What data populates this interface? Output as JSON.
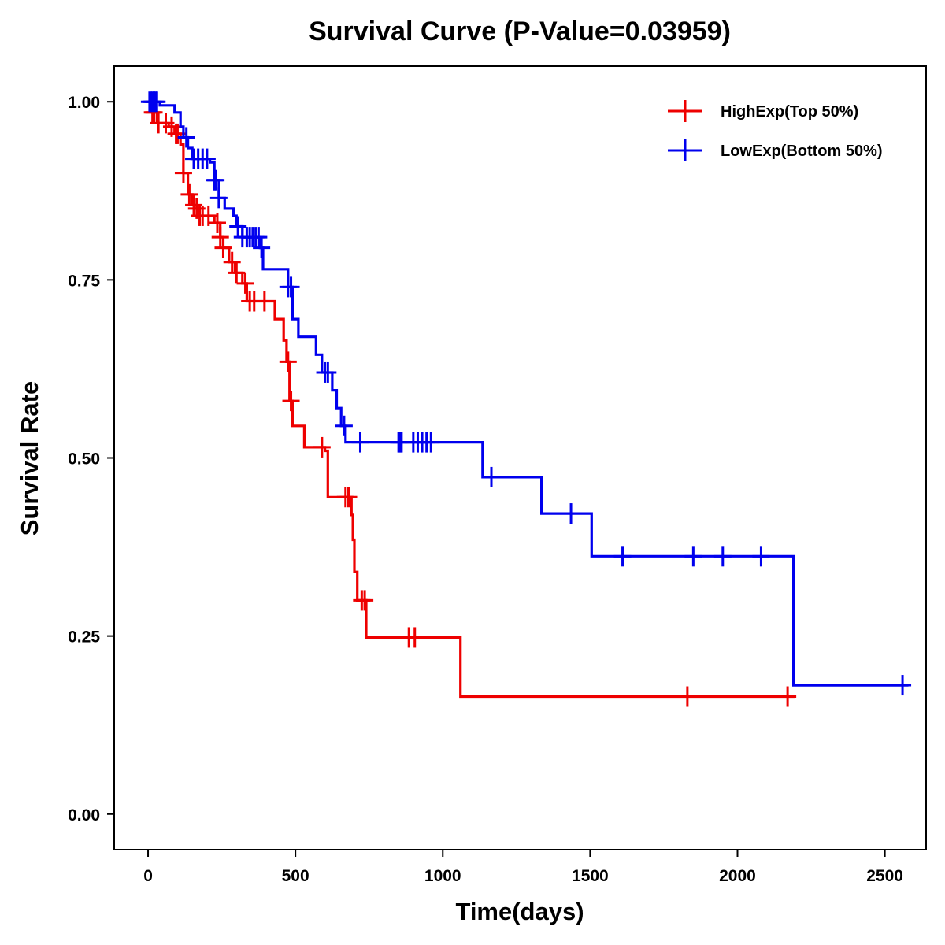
{
  "chart_data": {
    "type": "line",
    "subtype": "kaplan-meier",
    "title": "Survival Curve (P-Value=0.03959)",
    "xlabel": "Time(days)",
    "ylabel": "Survival Rate",
    "xlim": [
      -115,
      2640
    ],
    "ylim": [
      -0.05,
      1.05
    ],
    "xticks": [
      0,
      500,
      1000,
      1500,
      2000,
      2500
    ],
    "xtick_labels": [
      "0",
      "500",
      "1000",
      "1500",
      "2000",
      "2500"
    ],
    "yticks": [
      0,
      0.25,
      0.5,
      0.75,
      1
    ],
    "ytick_labels": [
      "0.00",
      "0.25",
      "0.50",
      "0.75",
      "1.00"
    ],
    "legend_position": "top-right",
    "series": [
      {
        "name": "HighExp(Top 50%)",
        "color": "#ee0000",
        "steps": [
          [
            0,
            1.0
          ],
          [
            15,
            0.985
          ],
          [
            30,
            0.97
          ],
          [
            50,
            0.97
          ],
          [
            70,
            0.965
          ],
          [
            90,
            0.955
          ],
          [
            110,
            0.94
          ],
          [
            120,
            0.9
          ],
          [
            135,
            0.87
          ],
          [
            150,
            0.855
          ],
          [
            165,
            0.85
          ],
          [
            175,
            0.84
          ],
          [
            195,
            0.84
          ],
          [
            225,
            0.83
          ],
          [
            245,
            0.81
          ],
          [
            255,
            0.795
          ],
          [
            275,
            0.775
          ],
          [
            295,
            0.76
          ],
          [
            320,
            0.745
          ],
          [
            335,
            0.72
          ],
          [
            380,
            0.72
          ],
          [
            405,
            0.72
          ],
          [
            430,
            0.695
          ],
          [
            460,
            0.665
          ],
          [
            470,
            0.635
          ],
          [
            480,
            0.58
          ],
          [
            490,
            0.545
          ],
          [
            530,
            0.515
          ],
          [
            600,
            0.51
          ],
          [
            610,
            0.445
          ],
          [
            670,
            0.445
          ],
          [
            690,
            0.42
          ],
          [
            695,
            0.385
          ],
          [
            700,
            0.34
          ],
          [
            710,
            0.3
          ],
          [
            740,
            0.248
          ],
          [
            1060,
            0.165
          ],
          [
            2195,
            0.165
          ]
        ],
        "censor_times": [
          15,
          20,
          35,
          60,
          80,
          95,
          100,
          120,
          140,
          155,
          165,
          175,
          185,
          205,
          235,
          245,
          255,
          285,
          300,
          330,
          345,
          360,
          395,
          475,
          485,
          590,
          670,
          680,
          725,
          735,
          885,
          905,
          1830,
          2170
        ]
      },
      {
        "name": "LowExp(Bottom 50%)",
        "color": "#0000ee",
        "steps": [
          [
            0,
            1.0
          ],
          [
            40,
            0.995
          ],
          [
            90,
            0.985
          ],
          [
            110,
            0.965
          ],
          [
            120,
            0.95
          ],
          [
            135,
            0.935
          ],
          [
            150,
            0.92
          ],
          [
            210,
            0.915
          ],
          [
            225,
            0.89
          ],
          [
            240,
            0.865
          ],
          [
            260,
            0.85
          ],
          [
            290,
            0.84
          ],
          [
            300,
            0.825
          ],
          [
            320,
            0.81
          ],
          [
            380,
            0.795
          ],
          [
            390,
            0.765
          ],
          [
            445,
            0.765
          ],
          [
            475,
            0.74
          ],
          [
            490,
            0.695
          ],
          [
            510,
            0.67
          ],
          [
            570,
            0.645
          ],
          [
            590,
            0.62
          ],
          [
            625,
            0.595
          ],
          [
            640,
            0.57
          ],
          [
            655,
            0.545
          ],
          [
            670,
            0.522
          ],
          [
            1130,
            0.522
          ],
          [
            1135,
            0.473
          ],
          [
            1335,
            0.422
          ],
          [
            1505,
            0.362
          ],
          [
            2185,
            0.362
          ],
          [
            2190,
            0.181
          ],
          [
            2580,
            0.181
          ]
        ],
        "censor_times": [
          5,
          10,
          15,
          20,
          25,
          30,
          130,
          155,
          170,
          185,
          200,
          225,
          230,
          240,
          305,
          320,
          335,
          345,
          355,
          365,
          375,
          385,
          475,
          485,
          600,
          610,
          665,
          720,
          850,
          855,
          860,
          900,
          915,
          930,
          945,
          960,
          1165,
          1435,
          1610,
          1850,
          1950,
          2080,
          2560
        ]
      }
    ]
  }
}
